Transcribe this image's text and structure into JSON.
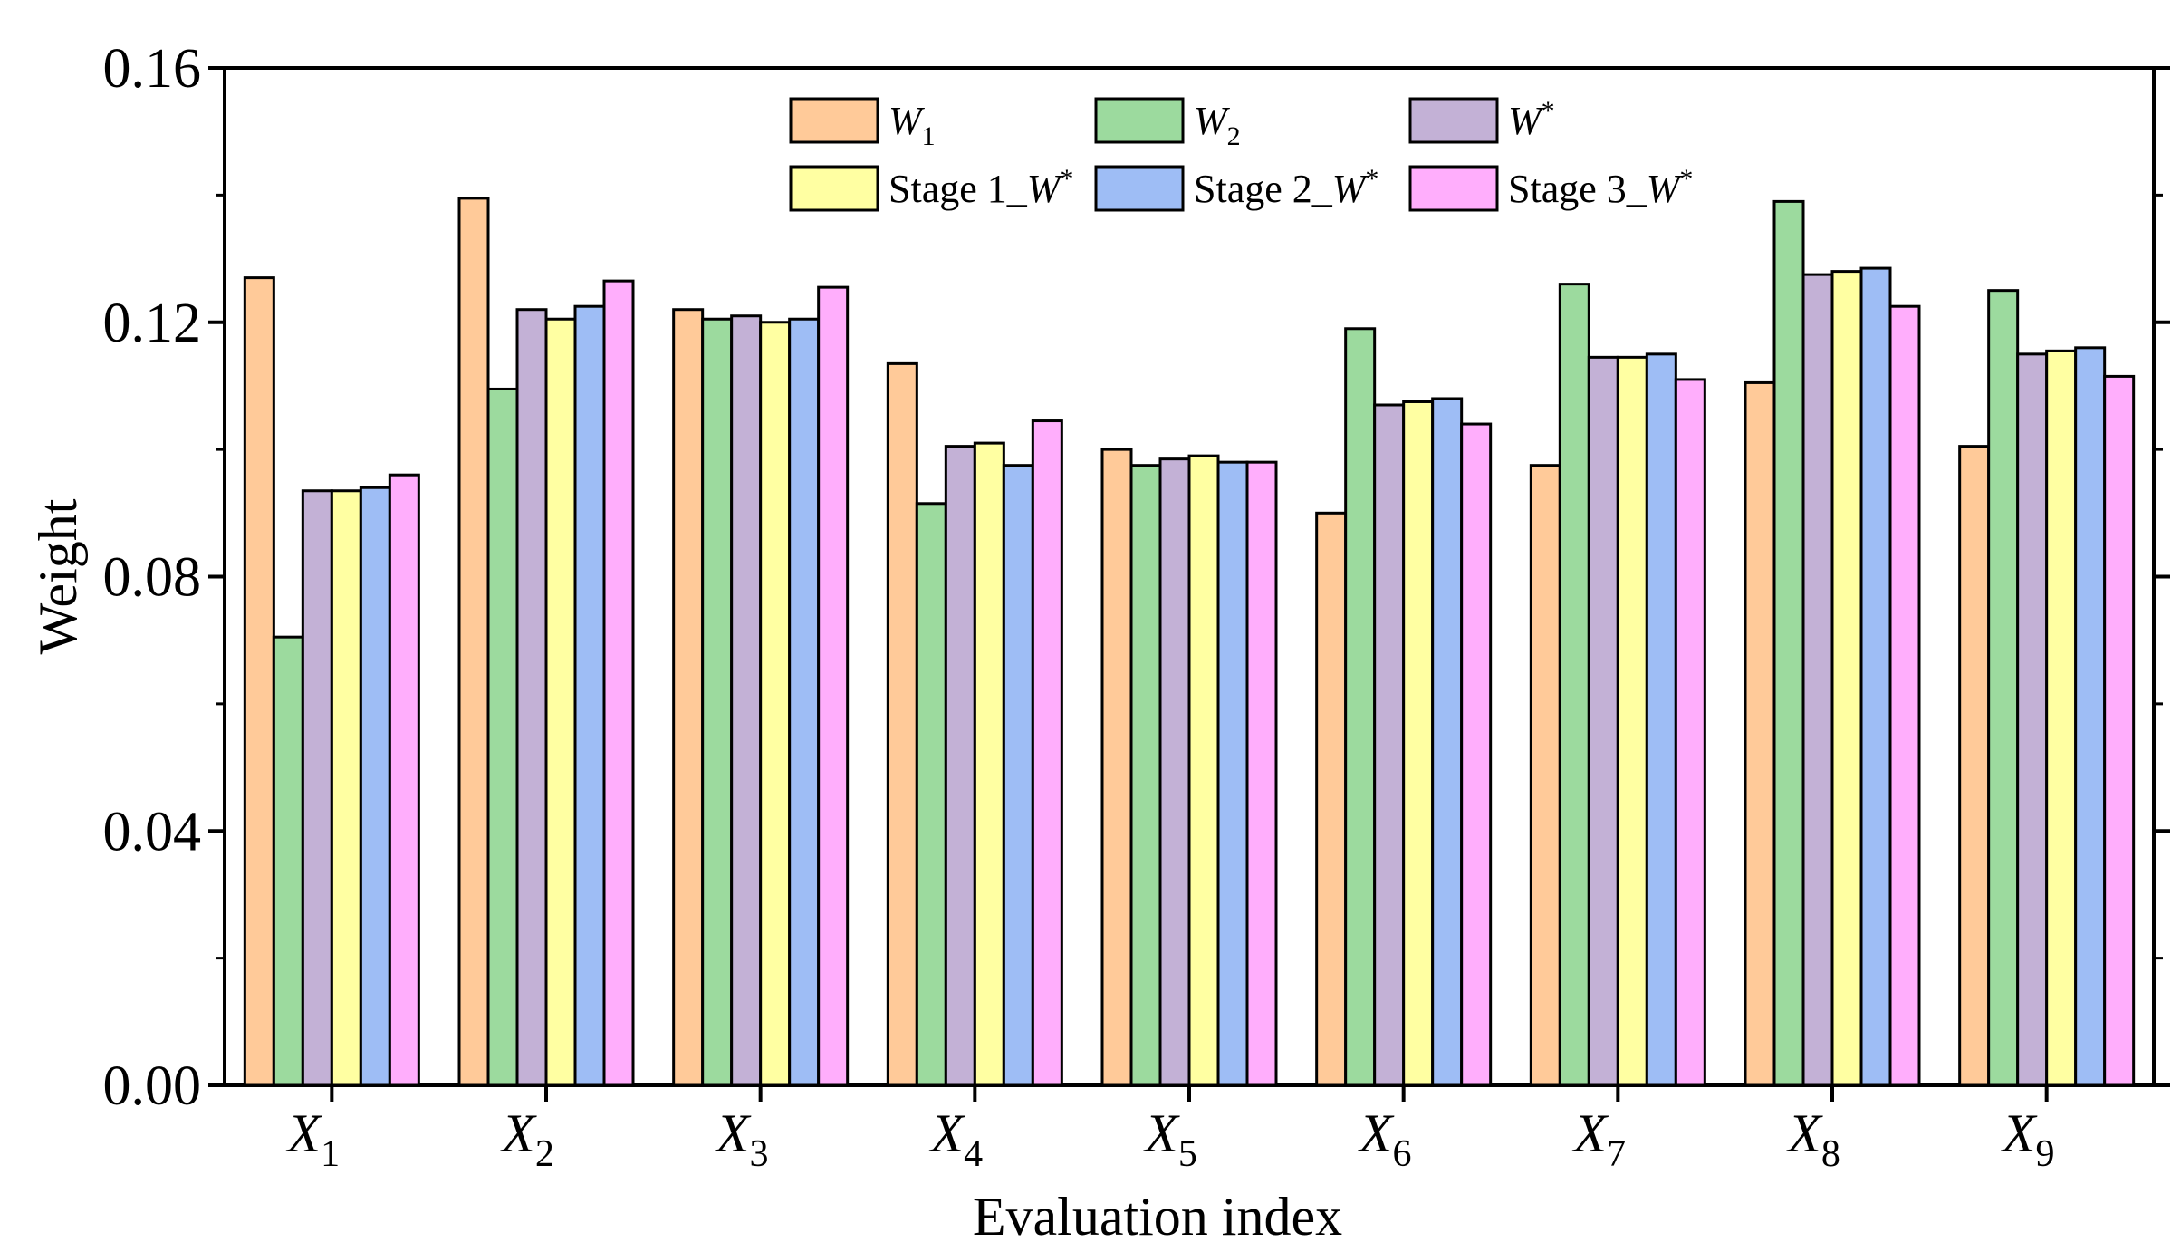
{
  "chart_data": {
    "type": "bar",
    "title": "",
    "xlabel": "Evaluation index",
    "ylabel": "Weight",
    "ylim": [
      0,
      0.16
    ],
    "yticks": [
      "0.00",
      "0.04",
      "0.08",
      "0.12",
      "0.16"
    ],
    "legend_position": "top-center",
    "categories": [
      {
        "base": "X",
        "sub": "1"
      },
      {
        "base": "X",
        "sub": "2"
      },
      {
        "base": "X",
        "sub": "3"
      },
      {
        "base": "X",
        "sub": "4"
      },
      {
        "base": "X",
        "sub": "5"
      },
      {
        "base": "X",
        "sub": "6"
      },
      {
        "base": "X",
        "sub": "7"
      },
      {
        "base": "X",
        "sub": "8"
      },
      {
        "base": "X",
        "sub": "9"
      }
    ],
    "series": [
      {
        "name": "W1",
        "label_prefix": "",
        "label_var": "W",
        "label_sub": "1",
        "label_sup": "",
        "color": "#FFCA99",
        "values": [
          0.127,
          0.1395,
          0.122,
          0.1135,
          0.1,
          0.09,
          0.0975,
          0.1105,
          0.1005
        ]
      },
      {
        "name": "W2",
        "label_prefix": "",
        "label_var": "W",
        "label_sub": "2",
        "label_sup": "",
        "color": "#9CDA9E",
        "values": [
          0.0705,
          0.1095,
          0.1205,
          0.0915,
          0.0975,
          0.119,
          0.126,
          0.139,
          0.125
        ]
      },
      {
        "name": "W*",
        "label_prefix": "",
        "label_var": "W",
        "label_sub": "",
        "label_sup": "*",
        "color": "#C3B1D6",
        "values": [
          0.0935,
          0.122,
          0.121,
          0.1005,
          0.0985,
          0.107,
          0.1145,
          0.1275,
          0.115
        ]
      },
      {
        "name": "Stage 1_W*",
        "label_prefix": "Stage 1_",
        "label_var": "W",
        "label_sub": "",
        "label_sup": "*",
        "color": "#FFFFA2",
        "values": [
          0.0935,
          0.1205,
          0.12,
          0.101,
          0.099,
          0.1075,
          0.1145,
          0.128,
          0.1155
        ]
      },
      {
        "name": "Stage 2_W*",
        "label_prefix": "Stage 2_",
        "label_var": "W",
        "label_sub": "",
        "label_sup": "*",
        "color": "#9EBDF5",
        "values": [
          0.094,
          0.1225,
          0.1205,
          0.0975,
          0.098,
          0.108,
          0.115,
          0.1285,
          0.116
        ]
      },
      {
        "name": "Stage 3_W*",
        "label_prefix": "Stage 3_",
        "label_var": "W",
        "label_sub": "",
        "label_sup": "*",
        "color": "#FFAEFC",
        "values": [
          0.096,
          0.1265,
          0.1255,
          0.1045,
          0.098,
          0.104,
          0.111,
          0.1225,
          0.1115
        ]
      }
    ]
  }
}
